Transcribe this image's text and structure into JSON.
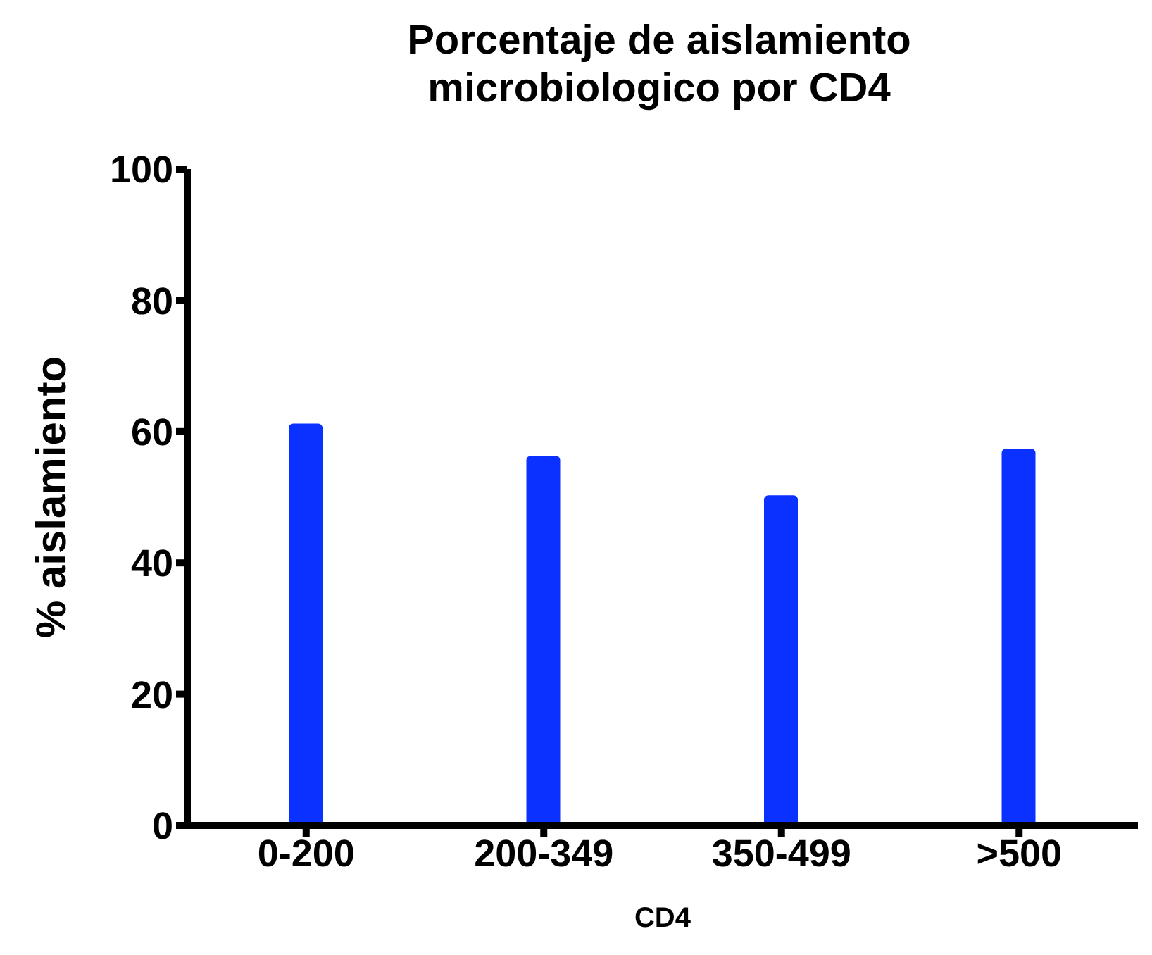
{
  "chart_data": {
    "type": "bar",
    "title": "Porcentaje de aislamiento microbiologico por CD4",
    "xlabel": "CD4",
    "ylabel": "% aislamiento",
    "categories": [
      "0-200",
      "200-349",
      "350-499",
      ">500"
    ],
    "series": [
      {
        "color": "#0a31ff",
        "values": [
          61.2,
          56.3,
          50.3,
          57.4
        ]
      }
    ],
    "ylim": [
      0,
      100
    ],
    "yticks": [
      0,
      20,
      40,
      60,
      80,
      100
    ],
    "grid": false,
    "legend": false
  }
}
